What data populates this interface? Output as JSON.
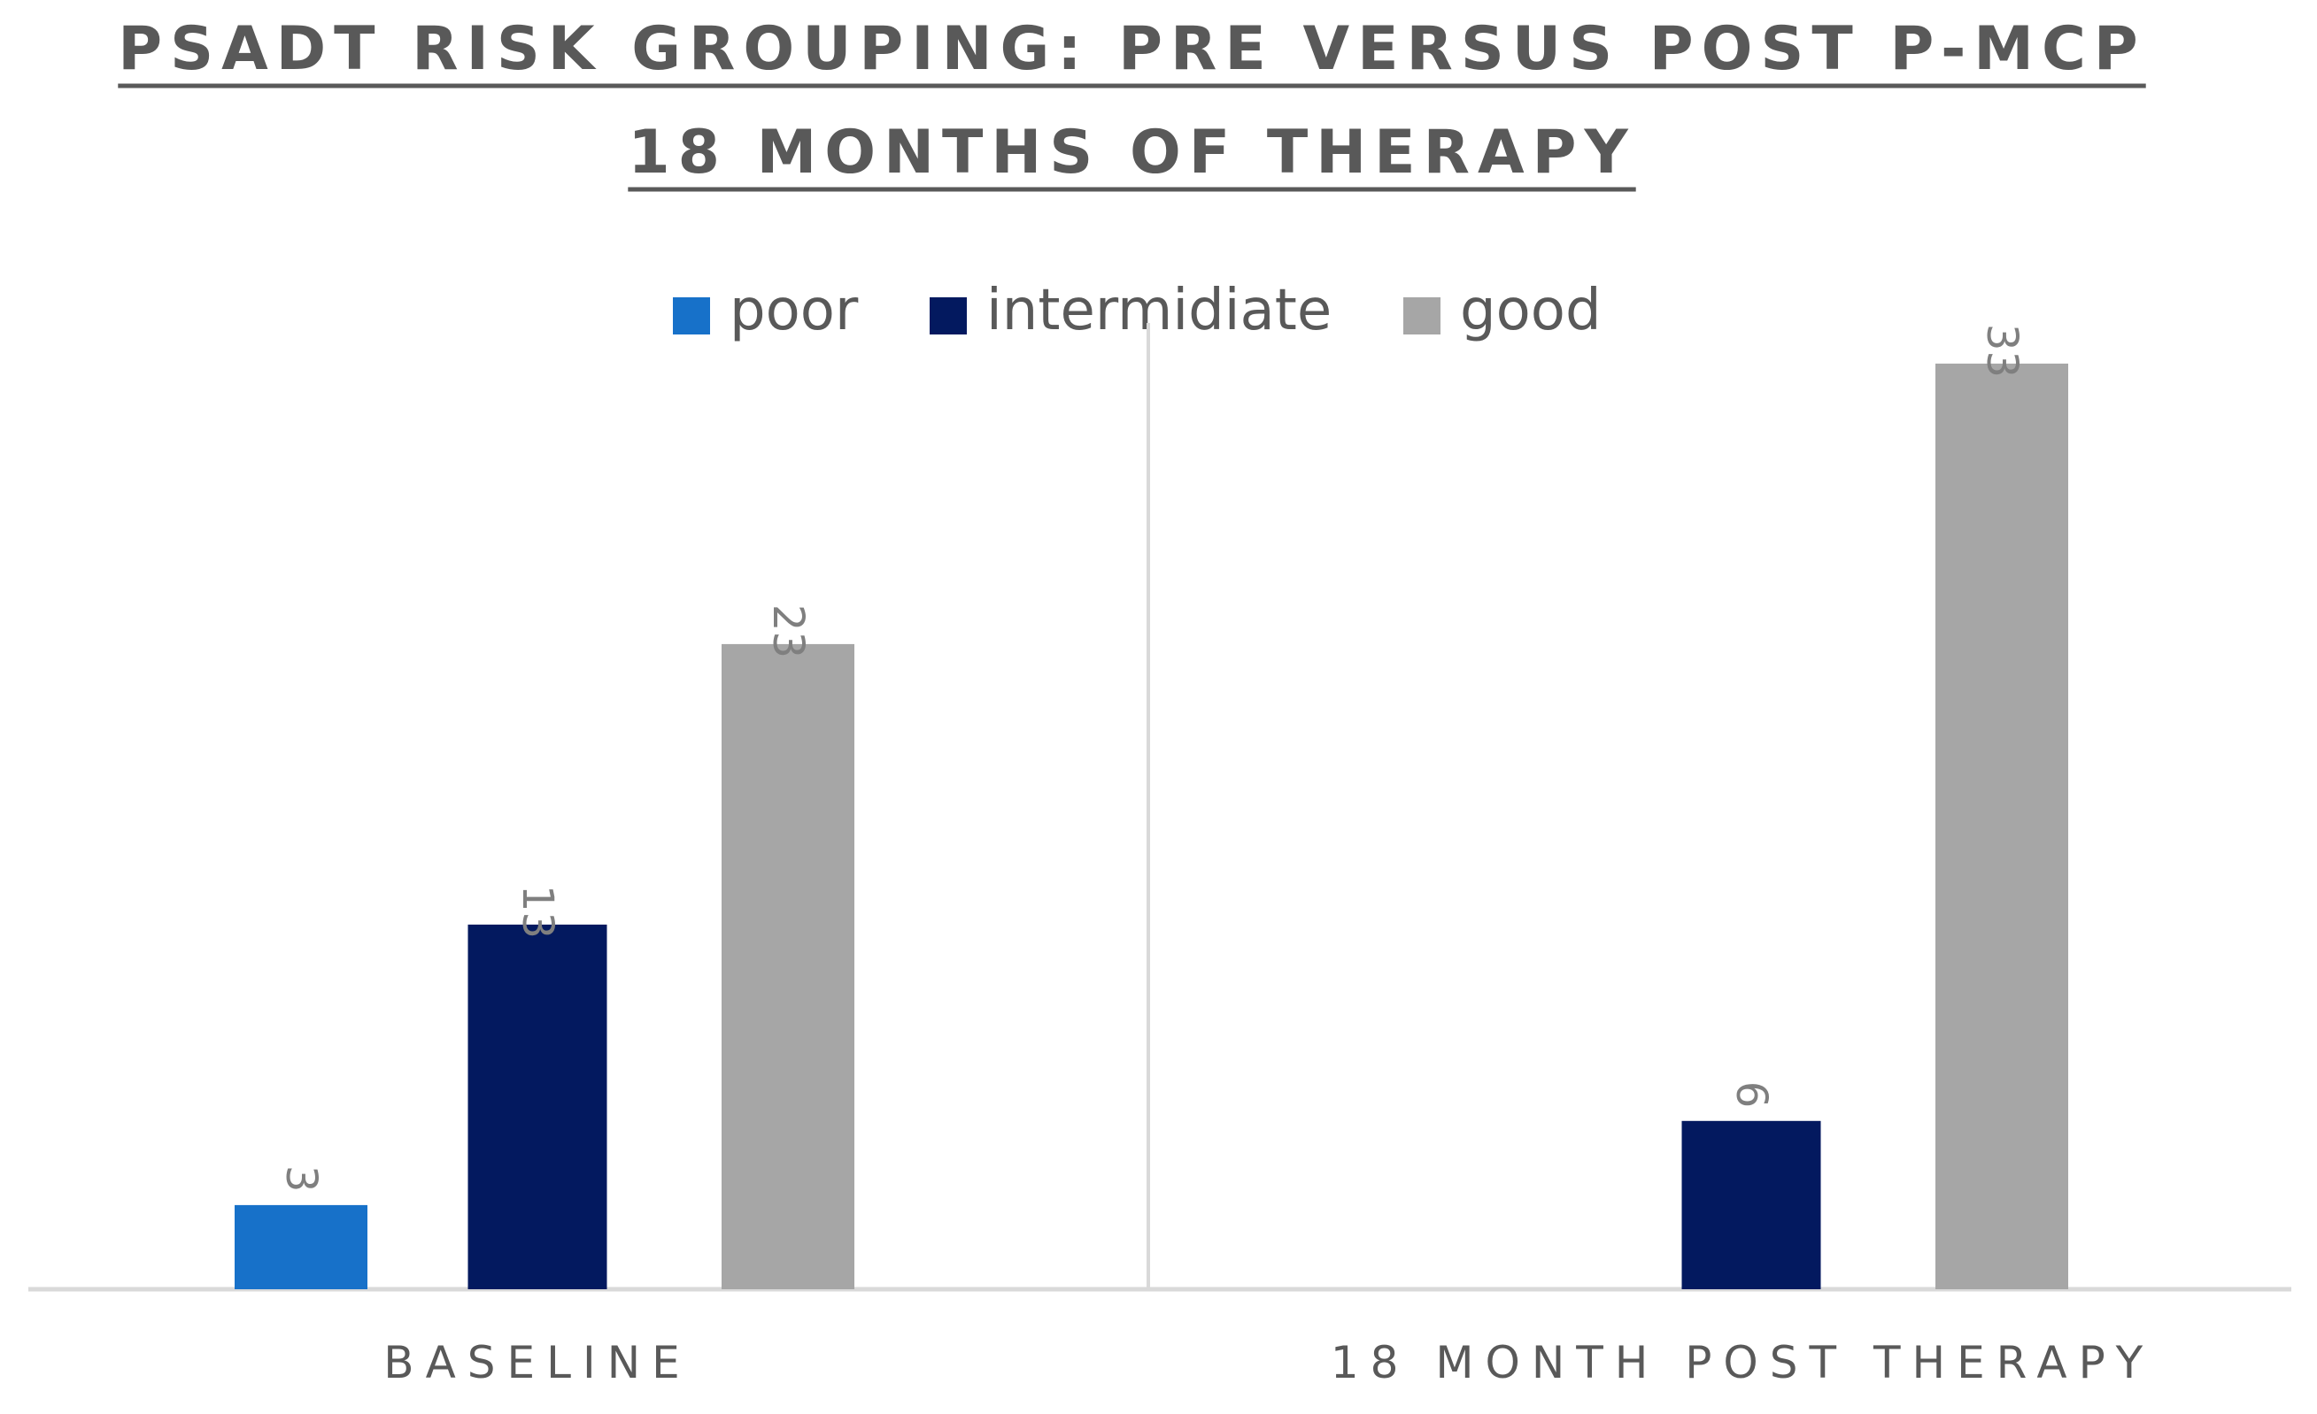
{
  "chart_data": {
    "type": "bar",
    "title_lines": [
      "PSADT RISK GROUPING: PRE VERSUS POST P-MCP",
      "18 MONTHS OF THERAPY"
    ],
    "categories": [
      "BASELINE",
      "18 MONTH POST THERAPY"
    ],
    "series": [
      {
        "name": "poor",
        "color": "#1771c9",
        "values": [
          3,
          null
        ]
      },
      {
        "name": "intermidiate",
        "color": "#03195f",
        "values": [
          13,
          6
        ]
      },
      {
        "name": "good",
        "color": "#a6a6a6",
        "values": [
          23,
          33
        ]
      }
    ],
    "ylim": [
      0,
      33
    ],
    "grid": false,
    "legend_position": "top-center",
    "data_labels": true
  }
}
